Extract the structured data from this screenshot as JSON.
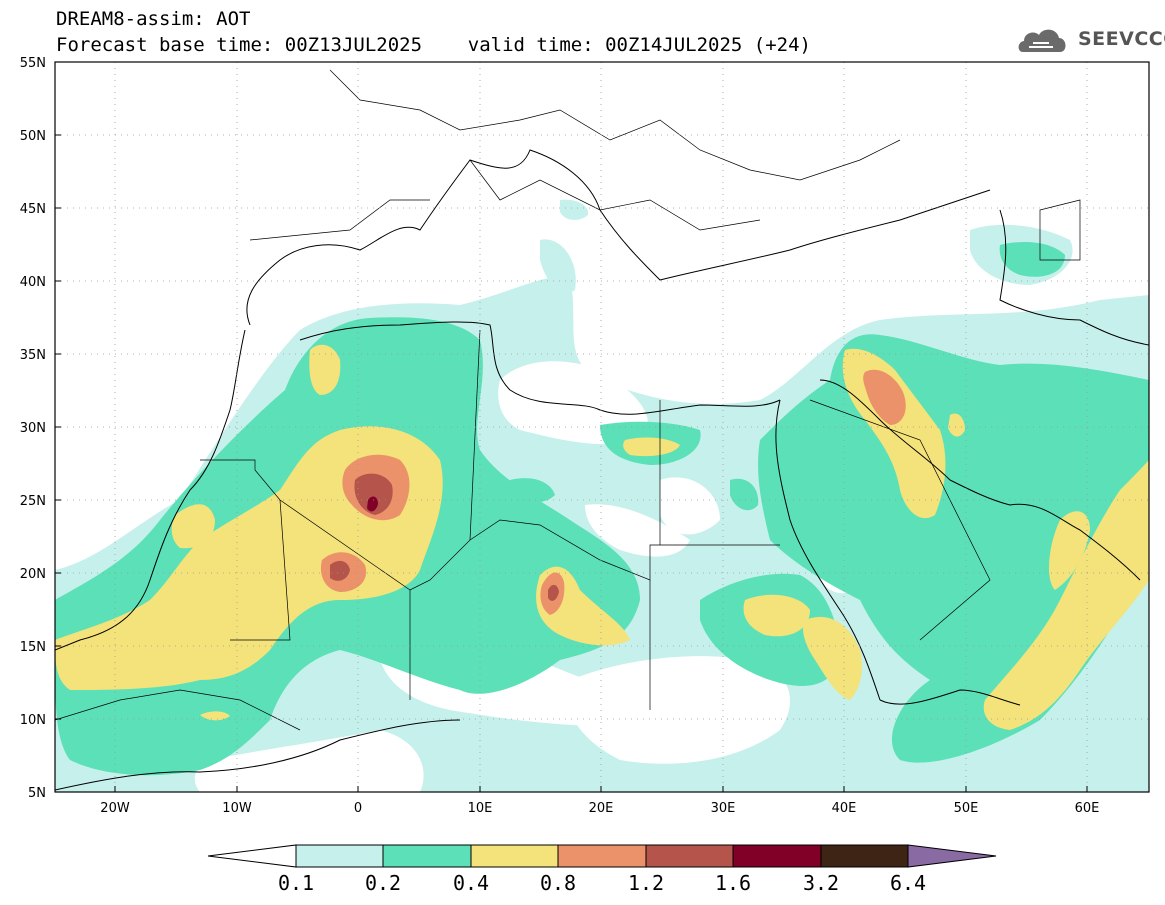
{
  "header": {
    "line1": "DREAM8-assim: AOT",
    "line2": "Forecast base time: 00Z13JUL2025    valid time: 00Z14JUL2025 (+24)"
  },
  "logo": {
    "text": "SEEVCCC",
    "icon": "cloud-icon",
    "color": "#555555"
  },
  "map": {
    "lon_range": [
      -25,
      65
    ],
    "lat_range": [
      5,
      55
    ],
    "x_ticks": [
      "20W",
      "10W",
      "0",
      "10E",
      "20E",
      "30E",
      "40E",
      "50E",
      "60E"
    ],
    "y_ticks": [
      "5N",
      "10N",
      "15N",
      "20N",
      "25N",
      "30N",
      "35N",
      "40N",
      "45N",
      "50N",
      "55N"
    ],
    "grid": "dotted"
  },
  "colorbar": {
    "labels": [
      "0.1",
      "0.2",
      "0.4",
      "0.8",
      "1.2",
      "1.6",
      "3.2",
      "6.4"
    ],
    "colors": [
      "#c6f0ec",
      "#5ce0b8",
      "#f4e27a",
      "#ec926a",
      "#b4544a",
      "#800028",
      "#3e2414",
      "#8a6aa2"
    ]
  },
  "colors": {
    "l1": "#c6f0ec",
    "l2": "#5ce0b8",
    "l3": "#f4e27a",
    "l4": "#ec926a",
    "l5": "#b4544a",
    "l6": "#800028"
  }
}
